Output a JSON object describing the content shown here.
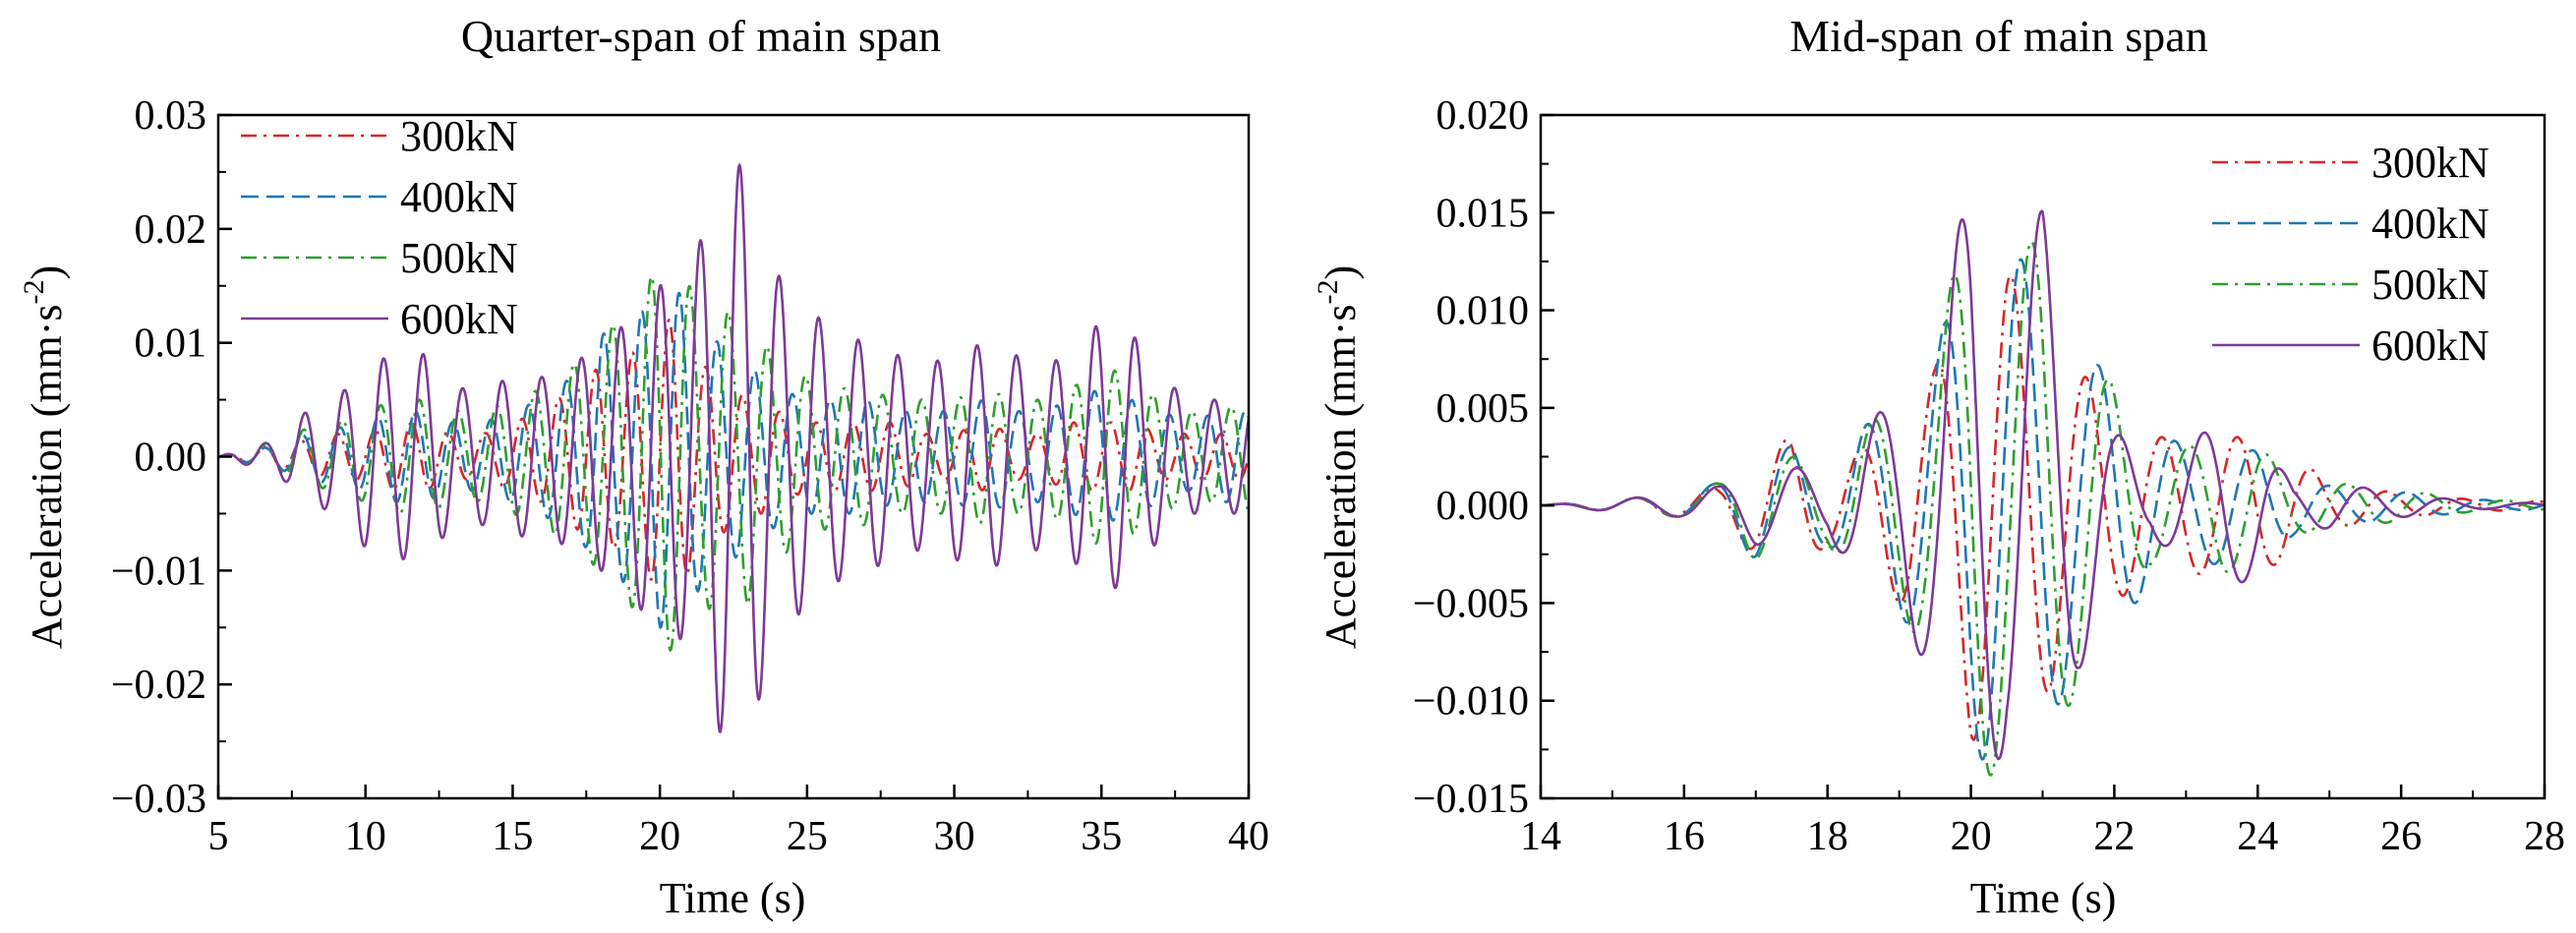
{
  "chart_data": [
    {
      "type": "line",
      "title": "Quarter-span of main span",
      "xlabel": "Time (s)",
      "ylabel": "Acceleration (mm·s⁻²)",
      "ylabel_main": "Acceleration (mm·s",
      "ylabel_sup": "-2",
      "ylabel_end": ")",
      "xlim": [
        5,
        40
      ],
      "ylim": [
        -0.03,
        0.03
      ],
      "xticks": [
        5,
        10,
        15,
        20,
        25,
        30,
        35,
        40
      ],
      "xtick_labels": [
        "5",
        "10",
        "15",
        "20",
        "25",
        "30",
        "35",
        "40"
      ],
      "yticks": [
        -0.03,
        -0.02,
        -0.01,
        0,
        0.01,
        0.02,
        0.03
      ],
      "ytick_labels": [
        "−0.03",
        "−0.02",
        "−0.01",
        "0.00",
        "0.01",
        "0.02",
        "0.03"
      ],
      "legend_position": "top-left",
      "series": [
        {
          "name": "300kN",
          "color": "#d62728",
          "dash": "dashdot",
          "x": [
            5,
            7,
            8,
            9,
            10,
            11,
            12,
            13,
            14,
            15,
            16,
            17,
            17.5,
            18,
            18.5,
            19,
            19.5,
            20,
            20.5,
            21,
            21.5,
            22,
            22.5,
            23,
            23.5,
            24,
            25,
            26,
            27,
            28,
            29,
            30,
            31,
            32,
            33,
            34,
            35,
            36,
            37,
            38,
            39,
            40
          ],
          "amp": [
            0,
            0.001,
            0.0015,
            0.002,
            0.002,
            0.003,
            0.003,
            0.002,
            0.002,
            0.003,
            0.004,
            0.006,
            0.007,
            0.008,
            0.008,
            0.009,
            0.01,
            0.012,
            0.012,
            0.01,
            0.008,
            0.007,
            0.006,
            0.005,
            0.005,
            0.004,
            0.003,
            0.003,
            0.003,
            0.003,
            0.002,
            0.002,
            0.003,
            0.002,
            0.002,
            0.003,
            0.003,
            0.003,
            0.002,
            0.002,
            0.002,
            0.002
          ]
        },
        {
          "name": "400kN",
          "color": "#1f77b4",
          "dash": "dash",
          "x": [
            5,
            7,
            8,
            9,
            10,
            11,
            12,
            13,
            14,
            15,
            16,
            17,
            17.5,
            18,
            18.5,
            19,
            19.5,
            20,
            20.5,
            21,
            21.5,
            22,
            22.5,
            23,
            23.5,
            24,
            25,
            26,
            27,
            28,
            29,
            30,
            31,
            32,
            33,
            34,
            35,
            36,
            37,
            38,
            39,
            40
          ],
          "amp": [
            0,
            0.001,
            0.002,
            0.0025,
            0.003,
            0.004,
            0.004,
            0.003,
            0.003,
            0.004,
            0.005,
            0.007,
            0.008,
            0.011,
            0.01,
            0.012,
            0.013,
            0.015,
            0.015,
            0.013,
            0.011,
            0.01,
            0.009,
            0.008,
            0.007,
            0.006,
            0.005,
            0.005,
            0.005,
            0.004,
            0.004,
            0.004,
            0.005,
            0.004,
            0.004,
            0.005,
            0.006,
            0.005,
            0.004,
            0.003,
            0.004,
            0.004
          ]
        },
        {
          "name": "500kN",
          "color": "#2ca02c",
          "dash": "dashdot",
          "x": [
            5,
            7,
            8,
            9,
            10,
            11,
            12,
            13,
            14,
            15,
            16,
            17,
            17.5,
            18,
            18.5,
            19,
            19.5,
            20,
            20.5,
            21,
            21.5,
            22,
            22.5,
            23,
            23.5,
            24,
            25,
            26,
            27,
            28,
            29,
            30,
            31,
            32,
            33,
            34,
            35,
            36,
            37,
            38,
            39,
            40
          ],
          "amp": [
            0,
            0.0012,
            0.0025,
            0.003,
            0.004,
            0.005,
            0.005,
            0.004,
            0.004,
            0.005,
            0.006,
            0.008,
            0.009,
            0.01,
            0.012,
            0.013,
            0.015,
            0.017,
            0.017,
            0.015,
            0.013,
            0.014,
            0.012,
            0.013,
            0.01,
            0.009,
            0.007,
            0.006,
            0.006,
            0.005,
            0.005,
            0.005,
            0.006,
            0.005,
            0.005,
            0.006,
            0.008,
            0.007,
            0.005,
            0.004,
            0.004,
            0.005
          ]
        },
        {
          "name": "600kN",
          "color": "#7d3a96",
          "dash": "solid",
          "x": [
            5,
            7,
            8,
            9,
            10,
            11,
            12,
            13,
            14,
            15,
            16,
            17,
            17.5,
            18,
            18.5,
            19,
            19.5,
            20,
            20.5,
            21,
            21.5,
            22,
            22.5,
            23,
            23.5,
            24,
            25,
            26,
            27,
            28,
            29,
            30,
            31,
            32,
            33,
            34,
            35,
            36,
            37,
            38,
            39,
            40
          ],
          "amp": [
            0,
            0.0015,
            0.004,
            0.005,
            0.008,
            0.009,
            0.009,
            0.006,
            0.006,
            0.007,
            0.007,
            0.008,
            0.009,
            0.01,
            0.011,
            0.012,
            0.014,
            0.015,
            0.016,
            0.016,
            0.02,
            0.024,
            0.026,
            0.025,
            0.02,
            0.016,
            0.013,
            0.011,
            0.01,
            0.009,
            0.008,
            0.009,
            0.01,
            0.009,
            0.008,
            0.009,
            0.012,
            0.011,
            0.007,
            0.005,
            0.005,
            0.005
          ]
        }
      ]
    },
    {
      "type": "line",
      "title": "Mid-span of main span",
      "xlabel": "Time (s)",
      "ylabel": "Acceleration (mm·s⁻²)",
      "ylabel_main": "Acceleration (mm·s",
      "ylabel_sup": "-2",
      "ylabel_end": ")",
      "xlim": [
        14,
        28
      ],
      "ylim": [
        -0.015,
        0.02
      ],
      "xticks": [
        14,
        16,
        18,
        20,
        22,
        24,
        26,
        28
      ],
      "xtick_labels": [
        "14",
        "16",
        "18",
        "20",
        "22",
        "24",
        "26",
        "28"
      ],
      "yticks": [
        -0.015,
        -0.01,
        -0.005,
        0,
        0.005,
        0.01,
        0.015,
        0.02
      ],
      "ytick_labels": [
        "−0.015",
        "−0.010",
        "−0.005",
        "0.000",
        "0.005",
        "0.010",
        "0.015",
        "0.020"
      ],
      "legend_position": "top-right",
      "series": [
        {
          "name": "300kN",
          "color": "#d62728",
          "dash": "dashdot",
          "x": [
            14,
            15,
            16,
            16.5,
            17,
            17.5,
            18,
            18.5,
            19,
            19.5,
            20,
            20.5,
            21,
            21.5,
            22,
            22.5,
            23,
            23.5,
            24,
            24.5,
            25,
            26,
            27,
            28
          ],
          "amp": [
            0,
            0.0003,
            0.0006,
            0.001,
            0.0025,
            0.0035,
            0.002,
            0.003,
            0.005,
            0.007,
            0.012,
            0.012,
            0.01,
            0.007,
            0.005,
            0.0035,
            0.0035,
            0.0035,
            0.0035,
            0.0025,
            0.0012,
            0.0006,
            0.0003,
            0.0002
          ]
        },
        {
          "name": "400kN",
          "color": "#1f77b4",
          "dash": "dash",
          "x": [
            14,
            15,
            16,
            16.5,
            17,
            17.5,
            18,
            18.5,
            19,
            19.5,
            20,
            20.5,
            21,
            21.5,
            22,
            22.5,
            23,
            23.5,
            24,
            24.5,
            25,
            26,
            27,
            28
          ],
          "amp": [
            0,
            0.0003,
            0.0006,
            0.0012,
            0.0028,
            0.003,
            0.002,
            0.004,
            0.0055,
            0.008,
            0.013,
            0.013,
            0.012,
            0.008,
            0.0065,
            0.004,
            0.003,
            0.003,
            0.0028,
            0.0015,
            0.001,
            0.0007,
            0.0003,
            0.0002
          ]
        },
        {
          "name": "500kN",
          "color": "#2ca02c",
          "dash": "dashdot",
          "x": [
            14,
            15,
            16,
            16.5,
            17,
            17.5,
            18,
            18.5,
            19,
            19.5,
            20,
            20.5,
            21,
            21.5,
            22,
            22.5,
            23,
            23.5,
            24,
            24.5,
            25,
            26,
            27,
            28
          ],
          "amp": [
            0,
            0.0003,
            0.0006,
            0.0012,
            0.0028,
            0.0025,
            0.002,
            0.004,
            0.0055,
            0.008,
            0.0155,
            0.0125,
            0.014,
            0.009,
            0.006,
            0.003,
            0.003,
            0.0035,
            0.003,
            0.0015,
            0.0012,
            0.0008,
            0.0003,
            0.0002
          ]
        },
        {
          "name": "600kN",
          "color": "#7d3a96",
          "dash": "solid",
          "x": [
            14,
            15,
            16,
            16.5,
            17,
            17.5,
            18,
            18.5,
            19,
            19.5,
            20,
            20.5,
            21,
            21.5,
            22,
            22.5,
            23,
            23.5,
            24,
            24.5,
            25,
            26,
            27,
            28
          ],
          "amp": [
            0,
            0.0003,
            0.0006,
            0.001,
            0.002,
            0.002,
            0.0015,
            0.004,
            0.0057,
            0.009,
            0.0168,
            0.012,
            0.0152,
            0.0085,
            0.004,
            0.0015,
            0.003,
            0.0045,
            0.0035,
            0.001,
            0.0012,
            0.0006,
            0.0002,
            0.0001
          ]
        }
      ]
    }
  ]
}
